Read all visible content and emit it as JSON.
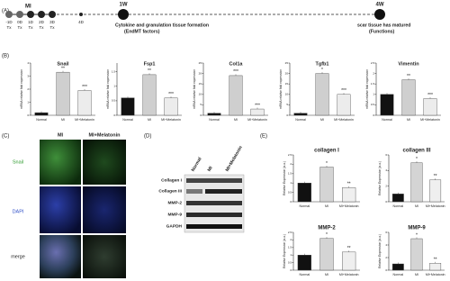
{
  "panel_a": {
    "label": "(A)",
    "mi": "MI",
    "steps": [
      "-1D",
      "0D",
      "1D",
      "2D",
      "3D"
    ],
    "tx": "Tx",
    "last_step": "4D",
    "w1": {
      "label": "1W",
      "line1": "Cytokine and granulation tissue formation",
      "line2": "(EndMT factors)"
    },
    "w4": {
      "label": "4W",
      "line1": "scar tissue has matured",
      "line2": "(Functions)"
    }
  },
  "panel_b": {
    "label": "(B)",
    "categories": [
      "Normal",
      "MI",
      "MI+Melatonin"
    ],
    "colors": [
      "#111111",
      "#cfcfcf",
      "#ececec"
    ],
    "ylabel": "mRNA relative fold expression",
    "charts": [
      {
        "title": "Snail",
        "values": [
          0.2,
          3.3,
          1.9
        ],
        "annotations": [
          null,
          "**",
          "***"
        ],
        "ylim": [
          0,
          4
        ],
        "yticks": [
          0,
          1,
          2,
          3,
          4
        ]
      },
      {
        "title": "Fsp1",
        "values": [
          0.6,
          1.4,
          0.6
        ],
        "annotations": [
          null,
          "**",
          "***"
        ],
        "ylim": [
          0,
          1.8
        ],
        "yticks": [
          0,
          0.5,
          1,
          1.5
        ]
      },
      {
        "title": "Col1a",
        "values": [
          1,
          19,
          3
        ],
        "annotations": [
          null,
          "***",
          "***"
        ],
        "ylim": [
          0,
          25
        ],
        "yticks": [
          0,
          5,
          10,
          15,
          20,
          25
        ]
      },
      {
        "title": "Tgfb1",
        "values": [
          1,
          20,
          10
        ],
        "annotations": [
          null,
          "*",
          "***"
        ],
        "ylim": [
          0,
          25
        ],
        "yticks": [
          0,
          5,
          10,
          15,
          20,
          25
        ]
      },
      {
        "title": "Vimentin",
        "values": [
          1,
          1.7,
          0.8
        ],
        "annotations": [
          null,
          "**",
          "***"
        ],
        "ylim": [
          0,
          2.5
        ],
        "yticks": [
          0,
          0.5,
          1,
          1.5,
          2,
          2.5
        ]
      }
    ]
  },
  "panel_c": {
    "label": "(C)",
    "columns": [
      "MI",
      "MI+Melatonin"
    ],
    "rows": [
      "Snail",
      "DAPI",
      "merge"
    ]
  },
  "panel_d": {
    "label": "(D)",
    "columns": [
      "Normal",
      "MI",
      "MI+Melatonin"
    ],
    "rows": [
      "Collagen I",
      "Collagen III",
      "MMP-2",
      "MMP-9",
      "GAPDH"
    ]
  },
  "panel_e": {
    "label": "(E)",
    "categories": [
      "Normal",
      "MI",
      "MI+Melatonin"
    ],
    "colors": [
      "#111111",
      "#d4d4d4",
      "#efefef"
    ],
    "ylabel": "Relative Expression (a.u.)",
    "charts": [
      {
        "title": "collagen I",
        "values": [
          1,
          1.85,
          0.75
        ],
        "annotations": [
          null,
          "*",
          "**"
        ],
        "ylim": [
          0,
          2.5
        ],
        "yticks": [
          0,
          0.5,
          1,
          1.5,
          2,
          2.5
        ]
      },
      {
        "title": "collagen III",
        "values": [
          1,
          5,
          2.8
        ],
        "annotations": [
          null,
          "*",
          "**"
        ],
        "ylim": [
          0,
          6
        ],
        "yticks": [
          0,
          2,
          4,
          6
        ]
      },
      {
        "title": "MMP-2",
        "values": [
          1,
          2.1,
          1.2
        ],
        "annotations": [
          null,
          "*",
          "**"
        ],
        "ylim": [
          0,
          2.5
        ],
        "yticks": [
          0,
          0.5,
          1,
          1.5,
          2,
          2.5
        ]
      },
      {
        "title": "MMP-9",
        "values": [
          1,
          5,
          1.1
        ],
        "annotations": [
          null,
          "*",
          "**"
        ],
        "ylim": [
          0,
          6
        ],
        "yticks": [
          0,
          2,
          4,
          6
        ]
      }
    ]
  }
}
